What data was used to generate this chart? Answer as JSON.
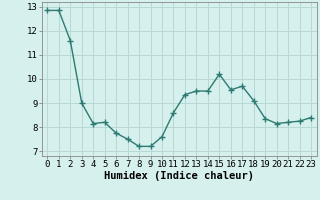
{
  "x": [
    0,
    1,
    2,
    3,
    4,
    5,
    6,
    7,
    8,
    9,
    10,
    11,
    12,
    13,
    14,
    15,
    16,
    17,
    18,
    19,
    20,
    21,
    22,
    23
  ],
  "y": [
    12.85,
    12.85,
    11.6,
    9.0,
    8.15,
    8.2,
    7.75,
    7.5,
    7.2,
    7.2,
    7.6,
    8.6,
    9.35,
    9.5,
    9.5,
    10.2,
    9.55,
    9.7,
    9.1,
    8.35,
    8.15,
    8.2,
    8.25,
    8.4
  ],
  "line_color": "#2d7a72",
  "marker_color": "#2d7a72",
  "bg_color": "#d6f0ee",
  "grid_color": "#b8d8d5",
  "xlabel": "Humidex (Indice chaleur)",
  "xlim": [
    -0.5,
    23.5
  ],
  "ylim": [
    6.8,
    13.2
  ],
  "yticks": [
    7,
    8,
    9,
    10,
    11,
    12,
    13
  ],
  "xtick_labels": [
    "0",
    "1",
    "2",
    "3",
    "4",
    "5",
    "6",
    "7",
    "8",
    "9",
    "10",
    "11",
    "12",
    "13",
    "14",
    "15",
    "16",
    "17",
    "18",
    "19",
    "20",
    "21",
    "22",
    "23"
  ],
  "marker_size": 2.5,
  "line_width": 1.0,
  "xlabel_fontsize": 7.5,
  "tick_fontsize": 6.5
}
